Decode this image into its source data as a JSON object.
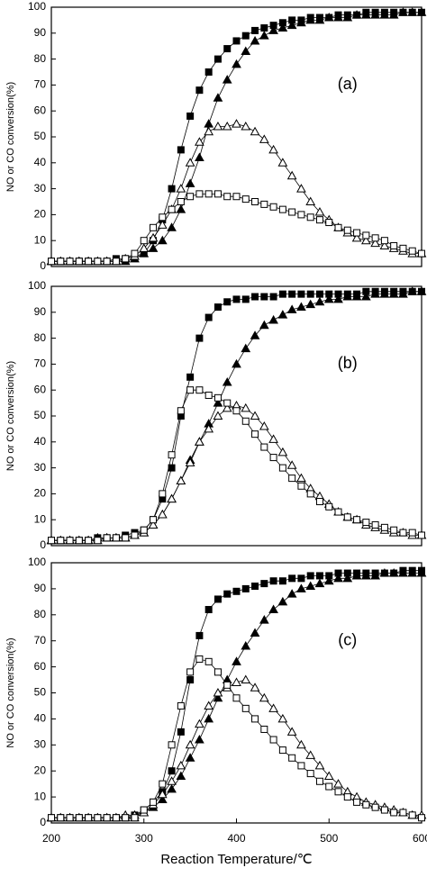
{
  "chart_data": [
    {
      "type": "line",
      "annotation": "(a)",
      "y_label": "NO or  CO  conversion(%)",
      "x": [
        200,
        210,
        220,
        230,
        240,
        250,
        260,
        270,
        280,
        290,
        300,
        310,
        320,
        330,
        340,
        350,
        360,
        370,
        380,
        390,
        400,
        410,
        420,
        430,
        440,
        450,
        460,
        470,
        480,
        490,
        500,
        510,
        520,
        530,
        540,
        550,
        560,
        570,
        580,
        590,
        600
      ],
      "xlim": [
        200,
        600
      ],
      "ylim": [
        0,
        100
      ],
      "yticks": [
        0,
        10,
        20,
        30,
        40,
        50,
        60,
        70,
        80,
        90,
        100
      ],
      "series": [
        {
          "marker": "square",
          "filled": true,
          "color": "#000000",
          "values": [
            2,
            2,
            2,
            2,
            2,
            2,
            2,
            3,
            3,
            4,
            5,
            10,
            18,
            30,
            45,
            58,
            68,
            75,
            80,
            84,
            87,
            89,
            91,
            92,
            93,
            94,
            95,
            95,
            96,
            96,
            96,
            97,
            97,
            97,
            98,
            98,
            98,
            98,
            98,
            98,
            98
          ]
        },
        {
          "marker": "triangle",
          "filled": true,
          "color": "#000000",
          "values": [
            2,
            2,
            2,
            2,
            2,
            2,
            2,
            2,
            2,
            3,
            5,
            7,
            10,
            15,
            22,
            32,
            42,
            55,
            65,
            72,
            78,
            83,
            87,
            89,
            91,
            92,
            93,
            94,
            95,
            95,
            96,
            96,
            96,
            97,
            97,
            97,
            97,
            97,
            98,
            98,
            98
          ]
        },
        {
          "marker": "triangle",
          "filled": false,
          "color": "#000000",
          "values": [
            2,
            2,
            2,
            2,
            2,
            2,
            2,
            2,
            3,
            4,
            7,
            11,
            16,
            22,
            30,
            40,
            48,
            52,
            54,
            54,
            55,
            54,
            52,
            49,
            45,
            40,
            35,
            30,
            25,
            21,
            18,
            15,
            13,
            11,
            10,
            9,
            8,
            7,
            6,
            5,
            5
          ]
        },
        {
          "marker": "square",
          "filled": false,
          "color": "#000000",
          "values": [
            2,
            2,
            2,
            2,
            2,
            2,
            2,
            2,
            3,
            5,
            10,
            15,
            19,
            22,
            25,
            27,
            28,
            28,
            28,
            27,
            27,
            26,
            25,
            24,
            23,
            22,
            21,
            20,
            19,
            18,
            17,
            15,
            14,
            13,
            12,
            11,
            10,
            8,
            7,
            6,
            5
          ]
        }
      ]
    },
    {
      "type": "line",
      "annotation": "(b)",
      "y_label": "NO or  CO  conversion(%)",
      "x": [
        200,
        210,
        220,
        230,
        240,
        250,
        260,
        270,
        280,
        290,
        300,
        310,
        320,
        330,
        340,
        350,
        360,
        370,
        380,
        390,
        400,
        410,
        420,
        430,
        440,
        450,
        460,
        470,
        480,
        490,
        500,
        510,
        520,
        530,
        540,
        550,
        560,
        570,
        580,
        590,
        600
      ],
      "xlim": [
        200,
        600
      ],
      "ylim": [
        0,
        100
      ],
      "yticks": [
        0,
        10,
        20,
        30,
        40,
        50,
        60,
        70,
        80,
        90,
        100
      ],
      "series": [
        {
          "marker": "square",
          "filled": true,
          "color": "#000000",
          "values": [
            2,
            2,
            2,
            2,
            2,
            3,
            3,
            3,
            4,
            5,
            6,
            10,
            18,
            30,
            50,
            65,
            80,
            88,
            92,
            94,
            95,
            95,
            96,
            96,
            96,
            97,
            97,
            97,
            97,
            97,
            97,
            97,
            97,
            97,
            98,
            98,
            98,
            98,
            98,
            98,
            98
          ]
        },
        {
          "marker": "triangle",
          "filled": true,
          "color": "#000000",
          "values": [
            2,
            2,
            2,
            2,
            2,
            3,
            3,
            3,
            3,
            4,
            5,
            8,
            12,
            18,
            25,
            33,
            40,
            47,
            55,
            63,
            70,
            76,
            81,
            85,
            87,
            89,
            91,
            92,
            93,
            94,
            95,
            95,
            96,
            96,
            96,
            97,
            97,
            97,
            97,
            98,
            98
          ]
        },
        {
          "marker": "triangle",
          "filled": false,
          "color": "#000000",
          "values": [
            2,
            2,
            2,
            2,
            2,
            2,
            3,
            3,
            3,
            4,
            5,
            8,
            12,
            18,
            25,
            32,
            40,
            45,
            50,
            53,
            54,
            53,
            50,
            46,
            41,
            36,
            31,
            26,
            22,
            19,
            16,
            13,
            11,
            10,
            8,
            7,
            6,
            5,
            5,
            4,
            4
          ]
        },
        {
          "marker": "square",
          "filled": false,
          "color": "#000000",
          "values": [
            2,
            2,
            2,
            2,
            2,
            2,
            3,
            3,
            3,
            4,
            6,
            10,
            20,
            35,
            52,
            60,
            60,
            58,
            57,
            55,
            52,
            48,
            43,
            38,
            34,
            30,
            26,
            23,
            20,
            17,
            15,
            13,
            11,
            10,
            9,
            8,
            7,
            6,
            5,
            5,
            4
          ]
        }
      ]
    },
    {
      "type": "line",
      "annotation": "(c)",
      "y_label": "NO or  CO  conversion(%)",
      "x_label": "Reaction Temperature/℃",
      "x": [
        200,
        210,
        220,
        230,
        240,
        250,
        260,
        270,
        280,
        290,
        300,
        310,
        320,
        330,
        340,
        350,
        360,
        370,
        380,
        390,
        400,
        410,
        420,
        430,
        440,
        450,
        460,
        470,
        480,
        490,
        500,
        510,
        520,
        530,
        540,
        550,
        560,
        570,
        580,
        590,
        600
      ],
      "xlim": [
        200,
        600
      ],
      "xticks": [
        200,
        300,
        400,
        500,
        600
      ],
      "ylim": [
        0,
        100
      ],
      "yticks": [
        0,
        10,
        20,
        30,
        40,
        50,
        60,
        70,
        80,
        90,
        100
      ],
      "series": [
        {
          "marker": "square",
          "filled": true,
          "color": "#000000",
          "values": [
            2,
            2,
            2,
            2,
            2,
            2,
            2,
            2,
            2,
            3,
            5,
            8,
            12,
            20,
            35,
            55,
            72,
            82,
            86,
            88,
            89,
            90,
            91,
            92,
            93,
            93,
            94,
            94,
            95,
            95,
            95,
            96,
            96,
            96,
            96,
            96,
            96,
            96,
            97,
            97,
            97
          ]
        },
        {
          "marker": "triangle",
          "filled": true,
          "color": "#000000",
          "values": [
            2,
            2,
            2,
            2,
            2,
            2,
            2,
            2,
            2,
            2,
            4,
            6,
            9,
            13,
            18,
            25,
            32,
            40,
            48,
            55,
            62,
            68,
            73,
            78,
            82,
            85,
            88,
            90,
            91,
            92,
            93,
            94,
            94,
            95,
            95,
            95,
            96,
            96,
            96,
            96,
            96
          ]
        },
        {
          "marker": "triangle",
          "filled": false,
          "color": "#000000",
          "values": [
            2,
            2,
            2,
            2,
            2,
            2,
            2,
            2,
            3,
            3,
            4,
            7,
            11,
            16,
            22,
            30,
            38,
            45,
            50,
            52,
            54,
            55,
            52,
            48,
            44,
            40,
            35,
            30,
            26,
            22,
            18,
            15,
            12,
            10,
            8,
            7,
            6,
            5,
            4,
            3,
            3
          ]
        },
        {
          "marker": "square",
          "filled": false,
          "color": "#000000",
          "values": [
            2,
            2,
            2,
            2,
            2,
            2,
            2,
            2,
            2,
            2,
            5,
            8,
            15,
            30,
            45,
            58,
            63,
            62,
            58,
            53,
            48,
            44,
            40,
            36,
            32,
            28,
            25,
            22,
            19,
            16,
            14,
            12,
            10,
            8,
            7,
            6,
            5,
            4,
            4,
            3,
            2
          ]
        }
      ]
    }
  ]
}
